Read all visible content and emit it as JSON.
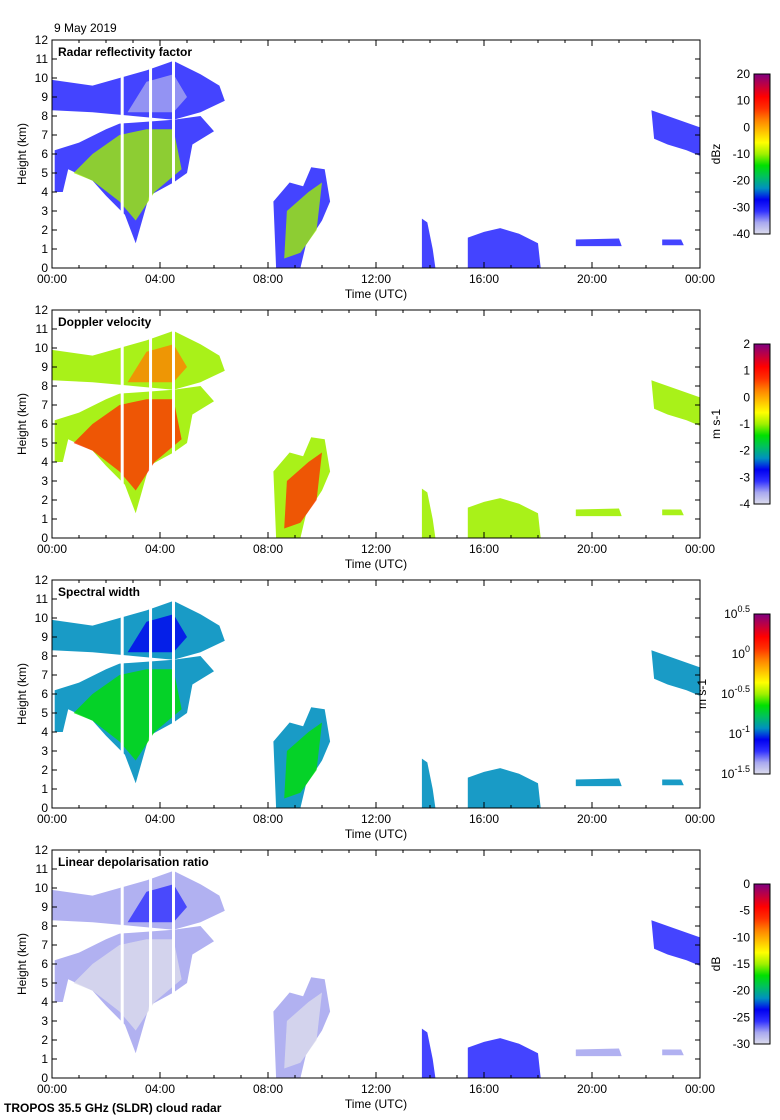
{
  "date_label": "9 May 2019",
  "footer": "TROPOS 35.5 GHz (SLDR) cloud radar",
  "colormap": [
    "#dcdcec",
    "#a8a8f0",
    "#3030ff",
    "#0000f0",
    "#0090c0",
    "#00c060",
    "#00e000",
    "#a0f000",
    "#ffff00",
    "#ffc000",
    "#ff8000",
    "#ff3000",
    "#ff0000",
    "#c00040",
    "#800080"
  ],
  "chart_data": [
    {
      "type": "heatmap",
      "title": "Radar reflectivity factor",
      "xlabel": "Time (UTC)",
      "ylabel": "Height (km)",
      "xticks": [
        "00:00",
        "04:00",
        "08:00",
        "12:00",
        "16:00",
        "20:00",
        "00:00"
      ],
      "xlim_hours": [
        0,
        24
      ],
      "yticks": [
        "0",
        "1",
        "2",
        "3",
        "4",
        "5",
        "6",
        "7",
        "8",
        "9",
        "10",
        "11",
        "12"
      ],
      "ylim": [
        0,
        12
      ],
      "colorbar": {
        "label": "dBz",
        "ticks": [
          "20",
          "10",
          "0",
          "-10",
          "-20",
          "-30",
          "-40"
        ],
        "range": [
          -40,
          20
        ]
      }
    },
    {
      "type": "heatmap",
      "title": "Doppler velocity",
      "xlabel": "Time (UTC)",
      "ylabel": "Height (km)",
      "xticks": [
        "00:00",
        "04:00",
        "08:00",
        "12:00",
        "16:00",
        "20:00",
        "00:00"
      ],
      "xlim_hours": [
        0,
        24
      ],
      "yticks": [
        "0",
        "1",
        "2",
        "3",
        "4",
        "5",
        "6",
        "7",
        "8",
        "9",
        "10",
        "11",
        "12"
      ],
      "ylim": [
        0,
        12
      ],
      "colorbar": {
        "label": "m s-1",
        "ticks": [
          "2",
          "1",
          "0",
          "-1",
          "-2",
          "-3",
          "-4"
        ],
        "range": [
          -4,
          2
        ]
      }
    },
    {
      "type": "heatmap",
      "title": "Spectral width",
      "xlabel": "Time (UTC)",
      "ylabel": "Height (km)",
      "xticks": [
        "00:00",
        "04:00",
        "08:00",
        "12:00",
        "16:00",
        "20:00",
        "00:00"
      ],
      "xlim_hours": [
        0,
        24
      ],
      "yticks": [
        "0",
        "1",
        "2",
        "3",
        "4",
        "5",
        "6",
        "7",
        "8",
        "9",
        "10",
        "11",
        "12"
      ],
      "ylim": [
        0,
        12
      ],
      "colorbar": {
        "label": "m s-1",
        "ticks": [
          "10^0.5",
          "10^0",
          "10^-0.5",
          "10^-1",
          "10^-1.5"
        ],
        "range": [
          -1.5,
          0.5
        ],
        "log": true
      }
    },
    {
      "type": "heatmap",
      "title": "Linear depolarisation ratio",
      "xlabel": "Time (UTC)",
      "ylabel": "Height (km)",
      "xticks": [
        "00:00",
        "04:00",
        "08:00",
        "12:00",
        "16:00",
        "20:00",
        "00:00"
      ],
      "xlim_hours": [
        0,
        24
      ],
      "yticks": [
        "0",
        "1",
        "2",
        "3",
        "4",
        "5",
        "6",
        "7",
        "8",
        "9",
        "10",
        "11",
        "12"
      ],
      "ylim": [
        0,
        12
      ],
      "colorbar": {
        "label": "dB",
        "ticks": [
          "0",
          "-5",
          "-10",
          "-15",
          "-20",
          "-25",
          "-30"
        ],
        "range": [
          -30,
          0
        ]
      }
    }
  ]
}
